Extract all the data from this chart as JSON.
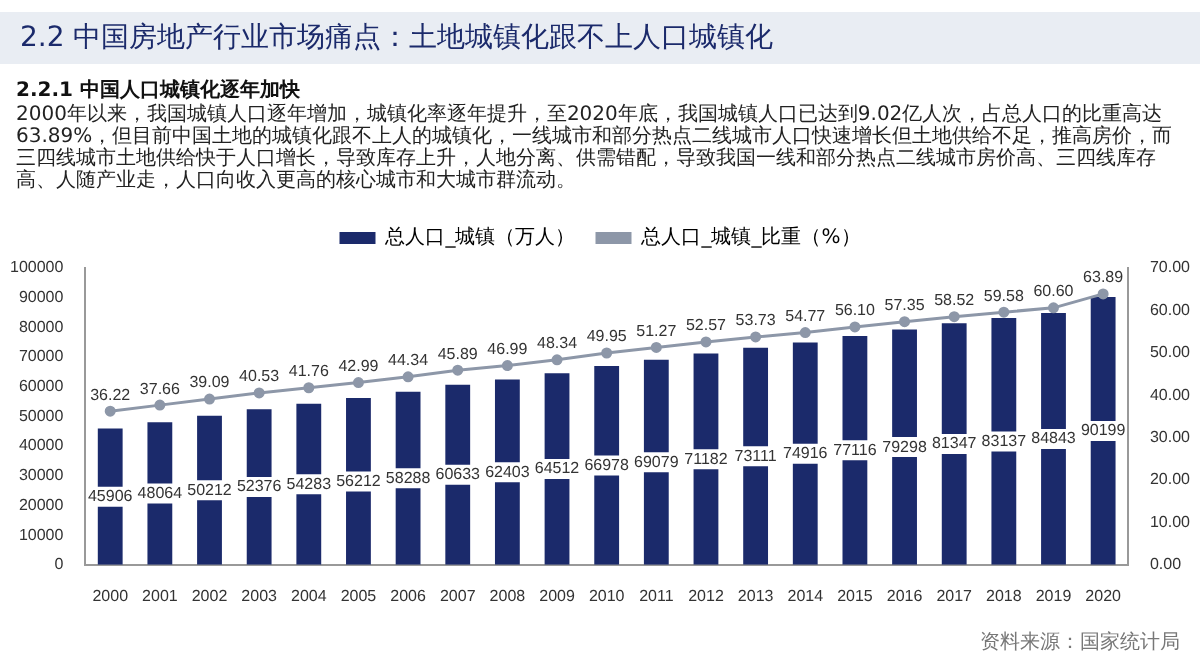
{
  "chart_data": {
    "type": "bar",
    "title": "2.2 中国房地产行业市场痛点：土地城镇化跟不上人口城镇化",
    "subtitle": "2.2.1 中国人口城镇化逐年加快",
    "annotations": [
      "2000年以来，我国城镇人口逐年增加，城镇化率逐年提升，至2020年底，我国城镇人口已达到9.02亿人次，占总人口的比重高达63.89%，但目前中国土地的城镇化跟不上人的城镇化，一线城市和部分热点二线城市人口快速增长但土地供给不足，推高房价，而三四线城市土地供给快于人口增长，导致库存上升，人地分离、供需错配，导致我国一线和部分热点二线城市房价高、三四线库存高、人随产业走，人口向收入更高的核心城市和大城市群流动。",
      "资料来源：国家统计局"
    ],
    "categories": [
      "2000",
      "2001",
      "2002",
      "2003",
      "2004",
      "2005",
      "2006",
      "2007",
      "2008",
      "2009",
      "2010",
      "2011",
      "2012",
      "2013",
      "2014",
      "2015",
      "2016",
      "2017",
      "2018",
      "2019",
      "2020"
    ],
    "series": [
      {
        "name": "总人口_城镇（万人）",
        "color": "#1b2a6b",
        "values": [
          45906,
          48064,
          50212,
          52376,
          54283,
          56212,
          58288,
          60633,
          62403,
          64512,
          66978,
          69079,
          71182,
          73111,
          74916,
          77116,
          79298,
          81347,
          83137,
          84843,
          90199
        ]
      },
      {
        "type": "line",
        "name": "总人口_城镇_比重（%）",
        "color": "#8d97a8",
        "axis": "y2",
        "marker": "circle",
        "values": [
          36.22,
          37.66,
          39.09,
          40.53,
          41.76,
          42.99,
          44.34,
          45.89,
          46.99,
          48.34,
          49.95,
          51.27,
          52.57,
          53.73,
          54.77,
          56.1,
          57.35,
          58.52,
          59.58,
          60.6,
          63.89
        ],
        "value_labels": [
          "36.22",
          "37.66",
          "39.09",
          "40.53",
          "41.76",
          "42.99",
          "44.34",
          "45.89",
          "46.99",
          "48.34",
          "49.95",
          "51.27",
          "52.57",
          "53.73",
          "54.77",
          "56.10",
          "57.35",
          "58.52",
          "59.58",
          "60.60",
          "63.89"
        ]
      }
    ],
    "ylim": [
      0,
      100000
    ],
    "yticks": [
      0,
      10000,
      20000,
      30000,
      40000,
      50000,
      60000,
      70000,
      80000,
      90000,
      100000
    ],
    "y2lim": [
      0,
      70
    ],
    "y2ticks": [
      {
        "value": 0,
        "label": "0.00"
      },
      {
        "value": 10,
        "label": "10.00"
      },
      {
        "value": 20,
        "label": "20.00"
      },
      {
        "value": 30,
        "label": "30.00"
      },
      {
        "value": 40,
        "label": "40.00"
      },
      {
        "value": 50,
        "label": "50.00"
      },
      {
        "value": 60,
        "label": "60.00"
      },
      {
        "value": 70,
        "label": "70.00"
      }
    ],
    "legend": "top",
    "grid": false,
    "data_labels": true
  }
}
